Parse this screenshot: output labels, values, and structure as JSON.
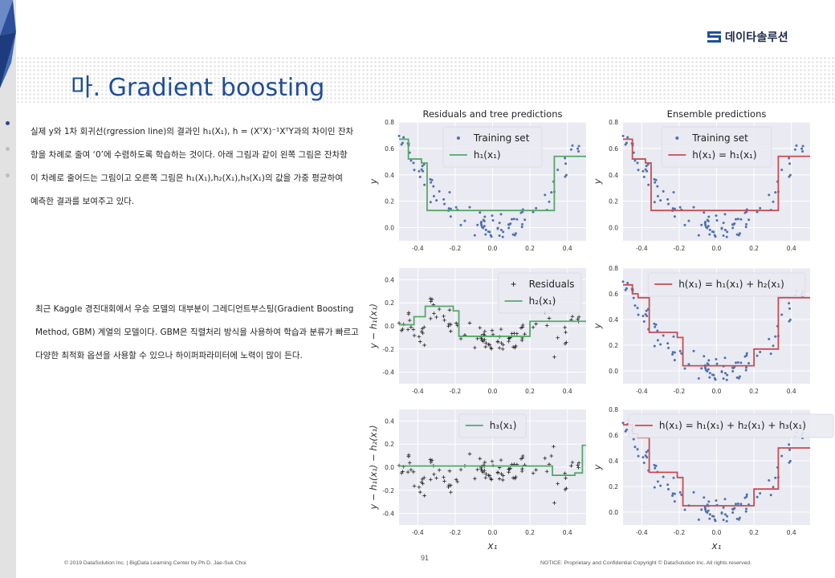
{
  "brand": {
    "name": "데이타솔루션"
  },
  "slide": {
    "title": "마. Gradient boosting",
    "paragraph1": [
      "실제 y와 1차 회귀선(rgression line)의 결과인 h₁(X₁), h = (XᵀX)⁻¹XᵀY과의 차이인 잔차",
      "항을 차례로 줄여 ‘0’에 수렴하도록 학습하는 것이다. 아래 그림과 같이 왼쪽 그림은 잔차항",
      "이 차례로 줄어드는 그림이고 오른쪽 그림은 h₁(X₁),h₂(X₁),h₃(X₁)의 값을 가중 평균하여",
      "예측한 결과를 보여주고 있다."
    ],
    "paragraph2": [
      "최근 Kaggle 경진대회에서 우승 모델의 대부분이 그레디언트부스팅(Gradient Boosting",
      "Method, GBM) 계열의 모델이다. GBM은 직렬처리 방식을 사용하여 학습과 분류가 빠르고",
      "다양한 최적화 옵션을 사용할 수 있으나 하이퍼파라미터에 노력이 많이 든다."
    ],
    "page_number": "91",
    "footer_left": "© 2019 DataSolution Inc. | BigData Learning Center by Ph.D. Jae-Suk Choi",
    "footer_right": "NOTICE: Proprietary and Confidential Copyright © DataSolution Inc. All rights reserved.",
    "nav_dots": 3
  },
  "colors": {
    "title": "#1f4e9a",
    "plot_bg": "#eaeaf2",
    "points": "#4c72b0",
    "green": "#55a868",
    "red": "#c44e52",
    "residual_marker": "#222222"
  },
  "chart_data": [
    {
      "type": "scatter",
      "title": "Residuals and tree predictions",
      "xlabel": "",
      "ylabel": "y",
      "xlim": [
        -0.5,
        0.5
      ],
      "ylim": [
        -0.1,
        0.8
      ],
      "xticks": [
        "-0.4",
        "-0.2",
        "0.0",
        "0.2",
        "0.4"
      ],
      "yticks": [
        "0.0",
        "0.2",
        "0.4",
        "0.6",
        "0.8"
      ],
      "legend": [
        "Training set",
        "h₁(x₁)"
      ],
      "legend_position": "top-center",
      "markers": "dots",
      "line_color": "green",
      "step": {
        "edges": [
          -0.5,
          -0.45,
          -0.38,
          -0.35,
          0.33,
          0.5
        ],
        "values": [
          0.67,
          0.52,
          0.49,
          0.13,
          0.54
        ]
      }
    },
    {
      "type": "scatter",
      "title": "Ensemble predictions",
      "xlabel": "",
      "ylabel": "y",
      "xlim": [
        -0.5,
        0.5
      ],
      "ylim": [
        -0.1,
        0.8
      ],
      "xticks": [
        "-0.4",
        "-0.2",
        "0.0",
        "0.2",
        "0.4"
      ],
      "yticks": [
        "0.0",
        "0.2",
        "0.4",
        "0.6",
        "0.8"
      ],
      "legend": [
        "Training set",
        "h(x₁) = h₁(x₁)"
      ],
      "legend_position": "top-center",
      "markers": "dots",
      "line_color": "red",
      "step": {
        "edges": [
          -0.5,
          -0.45,
          -0.38,
          -0.35,
          0.33,
          0.5
        ],
        "values": [
          0.67,
          0.52,
          0.49,
          0.13,
          0.54
        ]
      }
    },
    {
      "type": "scatter",
      "title": "",
      "xlabel": "",
      "ylabel": "y − h₁(x₁)",
      "xlim": [
        -0.5,
        0.5
      ],
      "ylim": [
        -0.5,
        0.5
      ],
      "xticks": [
        "-0.4",
        "-0.2",
        "0.0",
        "0.2",
        "0.4"
      ],
      "yticks": [
        "-0.4",
        "-0.2",
        "0.0",
        "0.2",
        "0.4"
      ],
      "legend": [
        "Residuals",
        "h₂(x₁)"
      ],
      "legend_position": "top-right",
      "markers": "plus",
      "line_color": "green",
      "step": {
        "edges": [
          -0.5,
          -0.42,
          -0.36,
          -0.21,
          -0.18,
          0.2,
          0.5
        ],
        "values": [
          0.01,
          0.08,
          0.17,
          0.13,
          -0.09,
          0.04
        ]
      }
    },
    {
      "type": "scatter",
      "title": "",
      "xlabel": "",
      "ylabel": "y",
      "xlim": [
        -0.5,
        0.5
      ],
      "ylim": [
        -0.1,
        0.8
      ],
      "xticks": [
        "-0.4",
        "-0.2",
        "0.0",
        "0.2",
        "0.4"
      ],
      "yticks": [
        "0.0",
        "0.2",
        "0.4",
        "0.6",
        "0.8"
      ],
      "legend": [
        "h(x₁) = h₁(x₁) + h₂(x₁)"
      ],
      "legend_position": "top-right",
      "markers": "dots",
      "line_color": "red",
      "step": {
        "edges": [
          -0.5,
          -0.45,
          -0.42,
          -0.36,
          -0.21,
          -0.18,
          0.2,
          0.33,
          0.5
        ],
        "values": [
          0.67,
          0.6,
          0.57,
          0.3,
          0.26,
          0.04,
          0.17,
          0.57
        ]
      }
    },
    {
      "type": "scatter",
      "title": "",
      "xlabel": "x₁",
      "ylabel": "y − h₁(x₁) − h₂(x₁)",
      "xlim": [
        -0.5,
        0.5
      ],
      "ylim": [
        -0.5,
        0.5
      ],
      "xticks": [
        "-0.4",
        "-0.2",
        "0.0",
        "0.2",
        "0.4"
      ],
      "yticks": [
        "-0.4",
        "-0.2",
        "0.0",
        "0.2",
        "0.4"
      ],
      "legend": [
        "h₃(x₁)"
      ],
      "legend_position": "top-center",
      "markers": "plus",
      "line_color": "green",
      "step": {
        "edges": [
          -0.5,
          0.32,
          0.44,
          0.48,
          0.5
        ],
        "values": [
          0.01,
          -0.07,
          -0.05,
          0.19
        ]
      }
    },
    {
      "type": "scatter",
      "title": "",
      "xlabel": "x₁",
      "ylabel": "y",
      "xlim": [
        -0.5,
        0.5
      ],
      "ylim": [
        -0.1,
        0.8
      ],
      "xticks": [
        "-0.4",
        "-0.2",
        "0.0",
        "0.2",
        "0.4"
      ],
      "yticks": [
        "0.0",
        "0.2",
        "0.4",
        "0.6",
        "0.8"
      ],
      "legend": [
        "h(x₁) = h₁(x₁) + h₂(x₁) + h₃(x₁)"
      ],
      "legend_position": "top",
      "markers": "dots",
      "line_color": "red",
      "step": {
        "edges": [
          -0.5,
          -0.45,
          -0.42,
          -0.36,
          -0.21,
          -0.18,
          0.2,
          0.33,
          0.5
        ],
        "values": [
          0.68,
          0.61,
          0.58,
          0.31,
          0.27,
          0.05,
          0.18,
          0.5
        ]
      }
    }
  ]
}
